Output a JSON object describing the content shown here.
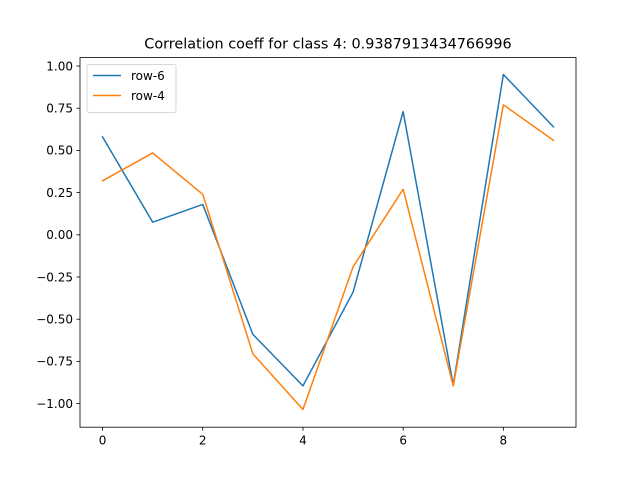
{
  "chart_data": {
    "type": "line",
    "title": "Correlation coeff for class 4: 0.9387913434766996",
    "xlabel": "",
    "ylabel": "",
    "x": [
      0,
      1,
      2,
      3,
      4,
      5,
      6,
      7,
      8,
      9
    ],
    "xlim": [
      -0.45,
      9.45
    ],
    "ylim": [
      -1.14,
      1.05
    ],
    "xticks": [
      0,
      2,
      4,
      6,
      8
    ],
    "xtick_labels": [
      "0",
      "2",
      "4",
      "6",
      "8"
    ],
    "yticks": [
      -1.0,
      -0.75,
      -0.5,
      -0.25,
      0.0,
      0.25,
      0.5,
      0.75,
      1.0
    ],
    "ytick_labels": [
      "−1.00",
      "−0.75",
      "−0.50",
      "−0.25",
      "0.00",
      "0.25",
      "0.50",
      "0.75",
      "1.00"
    ],
    "grid": false,
    "legend_position": "top-left",
    "series": [
      {
        "name": "row-6",
        "color": "#1f77b4",
        "values": [
          0.58,
          0.075,
          0.18,
          -0.59,
          -0.895,
          -0.34,
          0.73,
          -0.89,
          0.95,
          0.64
        ]
      },
      {
        "name": "row-4",
        "color": "#ff7f0e",
        "values": [
          0.32,
          0.485,
          0.24,
          -0.705,
          -1.035,
          -0.19,
          0.27,
          -0.895,
          0.77,
          0.56
        ]
      }
    ]
  }
}
